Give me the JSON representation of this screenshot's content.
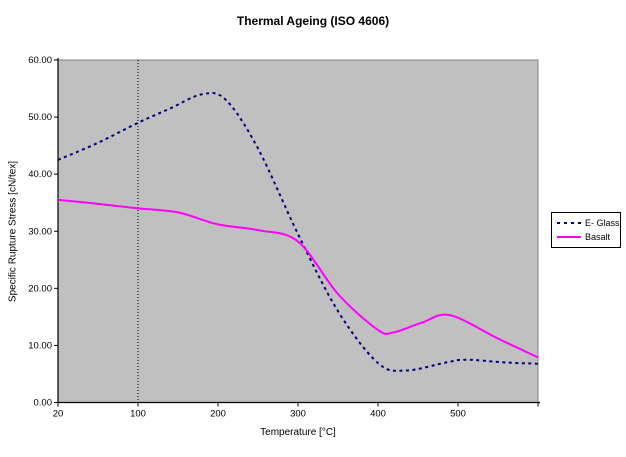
{
  "title": "Thermal Ageing (ISO 4606)",
  "colors": {
    "plot_background": "#c0c0c0",
    "plot_border": "#808080",
    "axis": "#000000",
    "gridline": "#000000",
    "e_glass": "#000080",
    "basalt": "#ff00ff"
  },
  "x_axis": {
    "label": "Temperature [°C]",
    "tick_labels": [
      "20",
      "100",
      "200",
      "300",
      "400",
      "500"
    ],
    "tick_label_values": [
      20,
      100,
      200,
      300,
      400,
      500
    ],
    "tick_mark_values": [
      20,
      100,
      200,
      300,
      400,
      500,
      600
    ]
  },
  "y_axis": {
    "label": "Specific Rupture Stress [cN/tex]",
    "tick_labels": [
      "0.00",
      "10.00",
      "20.00",
      "30.00",
      "40.00",
      "50.00",
      "60.00"
    ],
    "tick_values": [
      0,
      10,
      20,
      30,
      40,
      50,
      60
    ]
  },
  "legend": {
    "items": [
      {
        "label": "E- Glass",
        "color": "#000080",
        "line_style": "dashed"
      },
      {
        "label": "Basalt",
        "color": "#ff00ff",
        "line_style": "solid"
      }
    ]
  },
  "chart_data": {
    "type": "line",
    "title": "Thermal Ageing (ISO 4606)",
    "xlabel": "Temperature [°C]",
    "ylabel": "Specific Rupture Stress [cN/tex]",
    "ylim": [
      0,
      60
    ],
    "x_span": [
      20,
      600
    ],
    "x_ticks": [
      20,
      100,
      200,
      300,
      400,
      500
    ],
    "axis_note": "category-style axis: equal pixel spacing between ticks 20,100,200,300,400,500,600; last tick (600) unlabeled",
    "grid": "single vertical dotted gridline at x=100 only",
    "legend_position": "right",
    "gridline_at_x": 100,
    "series": [
      {
        "name": "E- Glass",
        "color": "#000080",
        "line_style": "dashed",
        "smooth": true,
        "points": [
          [
            20,
            42.5
          ],
          [
            60,
            45.5
          ],
          [
            100,
            49.0
          ],
          [
            140,
            51.5
          ],
          [
            180,
            54.0
          ],
          [
            210,
            53.0
          ],
          [
            250,
            44.5
          ],
          [
            300,
            29.5
          ],
          [
            350,
            16.0
          ],
          [
            400,
            6.9
          ],
          [
            435,
            5.6
          ],
          [
            485,
            7.0
          ],
          [
            510,
            7.5
          ],
          [
            560,
            7.0
          ],
          [
            600,
            6.8
          ]
        ]
      },
      {
        "name": "Basalt",
        "color": "#ff00ff",
        "line_style": "solid",
        "smooth": true,
        "points": [
          [
            20,
            35.5
          ],
          [
            60,
            34.8
          ],
          [
            100,
            34.0
          ],
          [
            150,
            33.3
          ],
          [
            200,
            31.2
          ],
          [
            250,
            30.2
          ],
          [
            300,
            28.2
          ],
          [
            350,
            19.0
          ],
          [
            400,
            12.7
          ],
          [
            420,
            12.3
          ],
          [
            455,
            14.0
          ],
          [
            490,
            15.3
          ],
          [
            550,
            11.2
          ],
          [
            600,
            7.9
          ]
        ]
      }
    ]
  }
}
